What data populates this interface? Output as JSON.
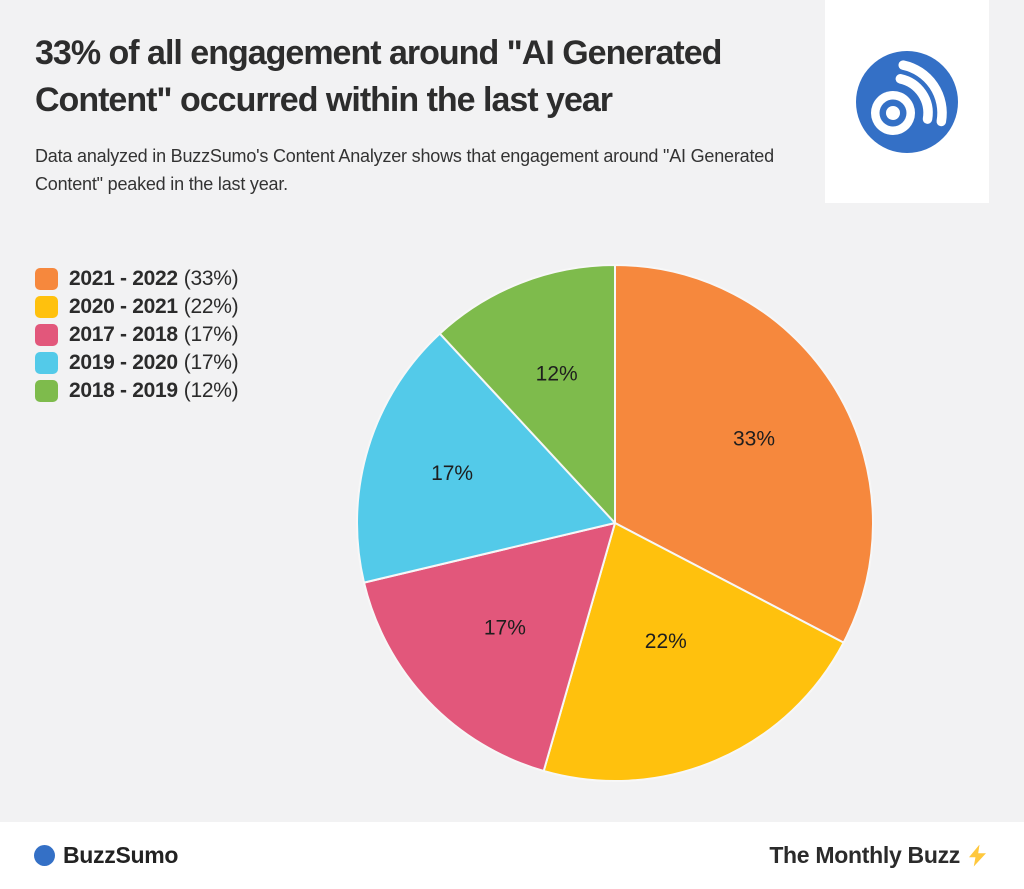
{
  "background_color": "#f2f2f3",
  "header": {
    "title": "33% of all engagement around \"AI Generated Content\" occurred within the last year",
    "subtitle": "Data analyzed in BuzzSumo's Content Analyzer shows that engagement around \"AI Generated Content\" peaked in the last year."
  },
  "logo": {
    "name": "buzzsumo-logo",
    "color": "#3470c6"
  },
  "chart_data": {
    "type": "pie",
    "title": "33% of all engagement around \"AI Generated Content\" occurred within the last year",
    "legend_position": "left",
    "start_angle_deg": 0,
    "direction": "clockwise",
    "slices": [
      {
        "label": "2021 - 2022",
        "value": 33,
        "percent_text": "(33%)",
        "slice_label": "33%",
        "color": "#f6883d",
        "label_radius_factor": 0.63
      },
      {
        "label": "2020 - 2021",
        "value": 22,
        "percent_text": "(22%)",
        "slice_label": "22%",
        "color": "#ffc10d",
        "label_radius_factor": 0.5
      },
      {
        "label": "2017 - 2018",
        "value": 17,
        "percent_text": "(17%)",
        "slice_label": "17%",
        "color": "#e2577b",
        "label_radius_factor": 0.59
      },
      {
        "label": "2019 - 2020",
        "value": 17,
        "percent_text": "(17%)",
        "slice_label": "17%",
        "color": "#53cae9",
        "label_radius_factor": 0.66
      },
      {
        "label": "2018 - 2019",
        "value": 12,
        "percent_text": "(12%)",
        "slice_label": "12%",
        "color": "#7ebb4c",
        "label_radius_factor": 0.62
      }
    ]
  },
  "footer": {
    "brand": "BuzzSumo",
    "brand_dot_color": "#3470c6",
    "right_text": "The Monthly Buzz",
    "right_icon": "lightning",
    "right_icon_color": "#ffc83d"
  }
}
